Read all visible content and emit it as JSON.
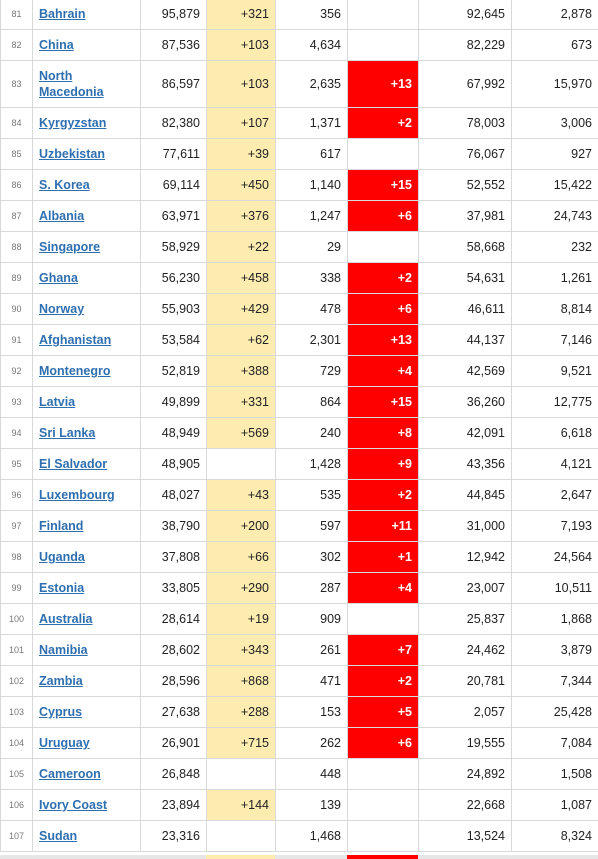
{
  "colors": {
    "link": "#2f6fb0",
    "new_cases_highlight": "#fcecb0",
    "new_deaths_highlight": "#ff0000",
    "grid": "#d9d9d9"
  },
  "rows": [
    {
      "rank": "81",
      "country": "Bahrain",
      "total_cases": "95,879",
      "new_cases": "+321",
      "total_deaths": "356",
      "new_deaths": "",
      "total_recovered": "92,645",
      "active_cases": "2,878"
    },
    {
      "rank": "82",
      "country": "China",
      "total_cases": "87,536",
      "new_cases": "+103",
      "total_deaths": "4,634",
      "new_deaths": "",
      "total_recovered": "82,229",
      "active_cases": "673"
    },
    {
      "rank": "83",
      "country": "North Macedonia",
      "total_cases": "86,597",
      "new_cases": "+103",
      "total_deaths": "2,635",
      "new_deaths": "+13",
      "total_recovered": "67,992",
      "active_cases": "15,970"
    },
    {
      "rank": "84",
      "country": "Kyrgyzstan",
      "total_cases": "82,380",
      "new_cases": "+107",
      "total_deaths": "1,371",
      "new_deaths": "+2",
      "total_recovered": "78,003",
      "active_cases": "3,006"
    },
    {
      "rank": "85",
      "country": "Uzbekistan",
      "total_cases": "77,611",
      "new_cases": "+39",
      "total_deaths": "617",
      "new_deaths": "",
      "total_recovered": "76,067",
      "active_cases": "927"
    },
    {
      "rank": "86",
      "country": "S. Korea",
      "total_cases": "69,114",
      "new_cases": "+450",
      "total_deaths": "1,140",
      "new_deaths": "+15",
      "total_recovered": "52,552",
      "active_cases": "15,422"
    },
    {
      "rank": "87",
      "country": "Albania",
      "total_cases": "63,971",
      "new_cases": "+376",
      "total_deaths": "1,247",
      "new_deaths": "+6",
      "total_recovered": "37,981",
      "active_cases": "24,743"
    },
    {
      "rank": "88",
      "country": "Singapore",
      "total_cases": "58,929",
      "new_cases": "+22",
      "total_deaths": "29",
      "new_deaths": "",
      "total_recovered": "58,668",
      "active_cases": "232"
    },
    {
      "rank": "89",
      "country": "Ghana",
      "total_cases": "56,230",
      "new_cases": "+458",
      "total_deaths": "338",
      "new_deaths": "+2",
      "total_recovered": "54,631",
      "active_cases": "1,261"
    },
    {
      "rank": "90",
      "country": "Norway",
      "total_cases": "55,903",
      "new_cases": "+429",
      "total_deaths": "478",
      "new_deaths": "+6",
      "total_recovered": "46,611",
      "active_cases": "8,814"
    },
    {
      "rank": "91",
      "country": "Afghanistan",
      "total_cases": "53,584",
      "new_cases": "+62",
      "total_deaths": "2,301",
      "new_deaths": "+13",
      "total_recovered": "44,137",
      "active_cases": "7,146"
    },
    {
      "rank": "92",
      "country": "Montenegro",
      "total_cases": "52,819",
      "new_cases": "+388",
      "total_deaths": "729",
      "new_deaths": "+4",
      "total_recovered": "42,569",
      "active_cases": "9,521"
    },
    {
      "rank": "93",
      "country": "Latvia",
      "total_cases": "49,899",
      "new_cases": "+331",
      "total_deaths": "864",
      "new_deaths": "+15",
      "total_recovered": "36,260",
      "active_cases": "12,775"
    },
    {
      "rank": "94",
      "country": "Sri Lanka",
      "total_cases": "48,949",
      "new_cases": "+569",
      "total_deaths": "240",
      "new_deaths": "+8",
      "total_recovered": "42,091",
      "active_cases": "6,618"
    },
    {
      "rank": "95",
      "country": "El Salvador",
      "total_cases": "48,905",
      "new_cases": "",
      "total_deaths": "1,428",
      "new_deaths": "+9",
      "total_recovered": "43,356",
      "active_cases": "4,121"
    },
    {
      "rank": "96",
      "country": "Luxembourg",
      "total_cases": "48,027",
      "new_cases": "+43",
      "total_deaths": "535",
      "new_deaths": "+2",
      "total_recovered": "44,845",
      "active_cases": "2,647"
    },
    {
      "rank": "97",
      "country": "Finland",
      "total_cases": "38,790",
      "new_cases": "+200",
      "total_deaths": "597",
      "new_deaths": "+11",
      "total_recovered": "31,000",
      "active_cases": "7,193"
    },
    {
      "rank": "98",
      "country": "Uganda",
      "total_cases": "37,808",
      "new_cases": "+66",
      "total_deaths": "302",
      "new_deaths": "+1",
      "total_recovered": "12,942",
      "active_cases": "24,564"
    },
    {
      "rank": "99",
      "country": "Estonia",
      "total_cases": "33,805",
      "new_cases": "+290",
      "total_deaths": "287",
      "new_deaths": "+4",
      "total_recovered": "23,007",
      "active_cases": "10,511"
    },
    {
      "rank": "100",
      "country": "Australia",
      "total_cases": "28,614",
      "new_cases": "+19",
      "total_deaths": "909",
      "new_deaths": "",
      "total_recovered": "25,837",
      "active_cases": "1,868"
    },
    {
      "rank": "101",
      "country": "Namibia",
      "total_cases": "28,602",
      "new_cases": "+343",
      "total_deaths": "261",
      "new_deaths": "+7",
      "total_recovered": "24,462",
      "active_cases": "3,879"
    },
    {
      "rank": "102",
      "country": "Zambia",
      "total_cases": "28,596",
      "new_cases": "+868",
      "total_deaths": "471",
      "new_deaths": "+2",
      "total_recovered": "20,781",
      "active_cases": "7,344"
    },
    {
      "rank": "103",
      "country": "Cyprus",
      "total_cases": "27,638",
      "new_cases": "+288",
      "total_deaths": "153",
      "new_deaths": "+5",
      "total_recovered": "2,057",
      "active_cases": "25,428"
    },
    {
      "rank": "104",
      "country": "Uruguay",
      "total_cases": "26,901",
      "new_cases": "+715",
      "total_deaths": "262",
      "new_deaths": "+6",
      "total_recovered": "19,555",
      "active_cases": "7,084"
    },
    {
      "rank": "105",
      "country": "Cameroon",
      "total_cases": "26,848",
      "new_cases": "",
      "total_deaths": "448",
      "new_deaths": "",
      "total_recovered": "24,892",
      "active_cases": "1,508"
    },
    {
      "rank": "106",
      "country": "Ivory Coast",
      "total_cases": "23,894",
      "new_cases": "+144",
      "total_deaths": "139",
      "new_deaths": "",
      "total_recovered": "22,668",
      "active_cases": "1,087"
    },
    {
      "rank": "107",
      "country": "Sudan",
      "total_cases": "23,316",
      "new_cases": "",
      "total_deaths": "1,468",
      "new_deaths": "",
      "total_recovered": "13,524",
      "active_cases": "8,324"
    }
  ]
}
